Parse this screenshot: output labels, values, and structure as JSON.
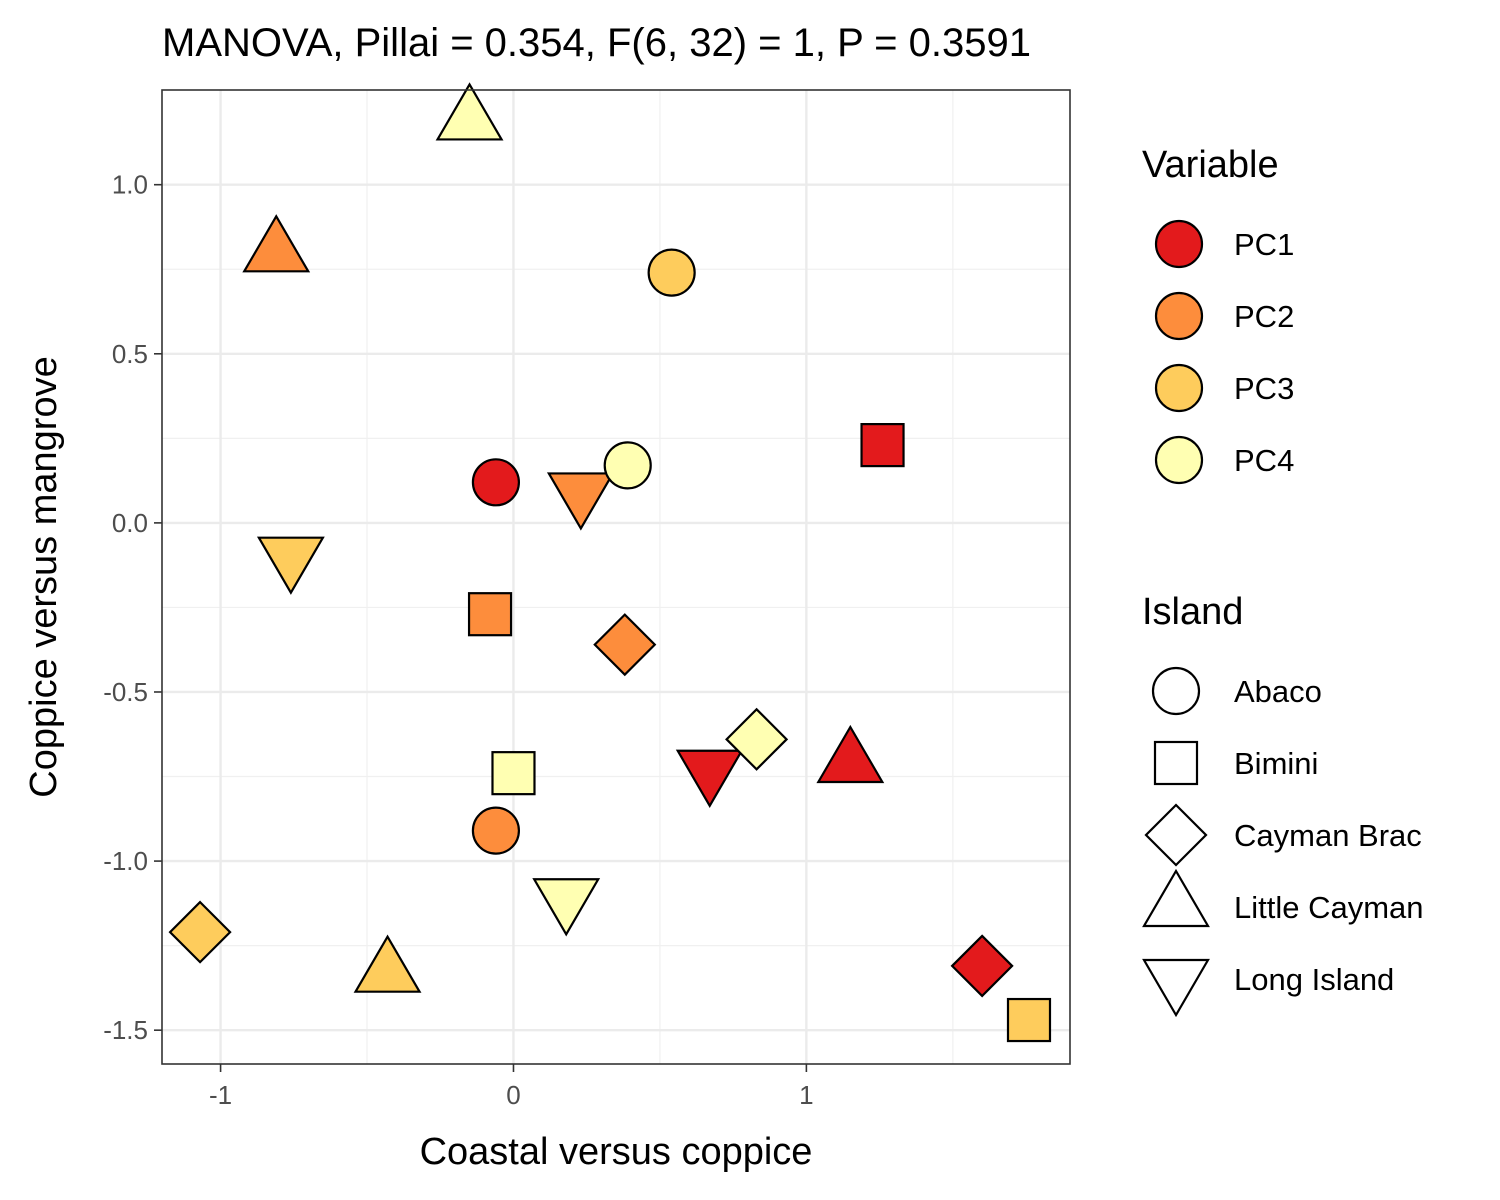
{
  "chart_data": {
    "type": "scatter",
    "title": "MANOVA, Pillai = 0.354, F(6, 32) = 1, P = 0.3591",
    "xlabel": "Coastal versus coppice",
    "ylabel": "Coppice versus mangrove",
    "xlim": [
      -1.2,
      1.9
    ],
    "ylim": [
      -1.6,
      1.28
    ],
    "x_ticks": [
      -1,
      0,
      1
    ],
    "x_tick_labels": [
      "-1",
      "0",
      "1"
    ],
    "y_ticks": [
      -1.5,
      -1.0,
      -0.5,
      0.0,
      0.5,
      1.0
    ],
    "y_tick_labels": [
      "-1.5",
      "-1.0",
      "-0.5",
      "0.0",
      "0.5",
      "1.0"
    ],
    "grid": true,
    "legend_placement": "right",
    "color_legend": {
      "title": "Variable",
      "items": [
        {
          "label": "PC1",
          "color": "#e31a1c"
        },
        {
          "label": "PC2",
          "color": "#fd8d3c"
        },
        {
          "label": "PC3",
          "color": "#fecc5c"
        },
        {
          "label": "PC4",
          "color": "#ffffb2"
        }
      ]
    },
    "shape_legend": {
      "title": "Island",
      "items": [
        {
          "label": "Abaco",
          "shape": "circle"
        },
        {
          "label": "Bimini",
          "shape": "square"
        },
        {
          "label": "Cayman Brac",
          "shape": "diamond"
        },
        {
          "label": "Little Cayman",
          "shape": "triangle-up"
        },
        {
          "label": "Long Island",
          "shape": "triangle-down"
        }
      ]
    },
    "points": [
      {
        "variable": "PC1",
        "island": "Abaco",
        "x": -0.06,
        "y": 0.12
      },
      {
        "variable": "PC1",
        "island": "Bimini",
        "x": 1.26,
        "y": 0.23
      },
      {
        "variable": "PC1",
        "island": "Cayman Brac",
        "x": 1.6,
        "y": -1.31
      },
      {
        "variable": "PC1",
        "island": "Little Cayman",
        "x": 1.15,
        "y": -0.71
      },
      {
        "variable": "PC1",
        "island": "Long Island",
        "x": 0.67,
        "y": -0.73
      },
      {
        "variable": "PC2",
        "island": "Abaco",
        "x": -0.06,
        "y": -0.91
      },
      {
        "variable": "PC2",
        "island": "Bimini",
        "x": -0.08,
        "y": -0.27
      },
      {
        "variable": "PC2",
        "island": "Cayman Brac",
        "x": 0.38,
        "y": -0.36
      },
      {
        "variable": "PC2",
        "island": "Little Cayman",
        "x": -0.81,
        "y": 0.8
      },
      {
        "variable": "PC2",
        "island": "Long Island",
        "x": 0.23,
        "y": 0.09
      },
      {
        "variable": "PC3",
        "island": "Abaco",
        "x": 0.54,
        "y": 0.74
      },
      {
        "variable": "PC3",
        "island": "Bimini",
        "x": 1.76,
        "y": -1.47
      },
      {
        "variable": "PC3",
        "island": "Cayman Brac",
        "x": -1.07,
        "y": -1.21
      },
      {
        "variable": "PC3",
        "island": "Little Cayman",
        "x": -0.43,
        "y": -1.33
      },
      {
        "variable": "PC3",
        "island": "Long Island",
        "x": -0.76,
        "y": -0.1
      },
      {
        "variable": "PC4",
        "island": "Abaco",
        "x": 0.39,
        "y": 0.17
      },
      {
        "variable": "PC4",
        "island": "Bimini",
        "x": 0.0,
        "y": -0.74
      },
      {
        "variable": "PC4",
        "island": "Cayman Brac",
        "x": 0.83,
        "y": -0.64
      },
      {
        "variable": "PC4",
        "island": "Little Cayman",
        "x": -0.15,
        "y": 1.19
      },
      {
        "variable": "PC4",
        "island": "Long Island",
        "x": 0.18,
        "y": -1.11
      }
    ]
  }
}
